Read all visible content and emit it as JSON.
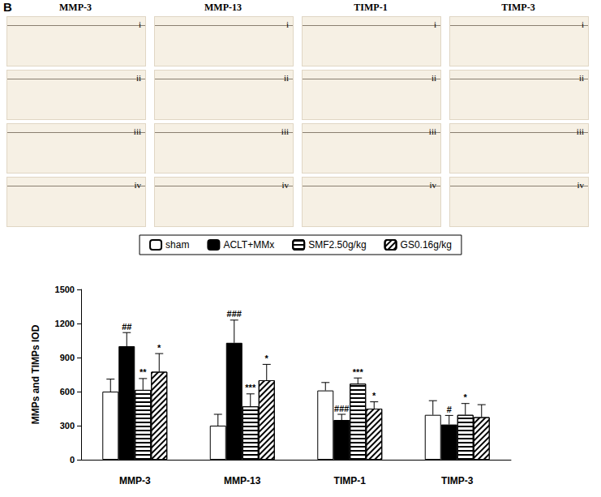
{
  "figure": {
    "label": "B",
    "panels": {
      "columns": [
        "MMP-3",
        "MMP-13",
        "TIMP-1",
        "TIMP-3"
      ],
      "rows": [
        "i",
        "ii",
        "iii",
        "iv"
      ]
    }
  },
  "chart_data": {
    "type": "bar",
    "categories": [
      "MMP-3",
      "MMP-13",
      "TIMP-1",
      "TIMP-3"
    ],
    "y_label": "MMPs and TIMPs IOD",
    "ylim": [
      0,
      1500
    ],
    "yticks": [
      0,
      300,
      600,
      900,
      1200,
      1500
    ],
    "grid": false,
    "legend": "top",
    "series": [
      {
        "name": "sham",
        "color": "#ffffff",
        "values": [
          600,
          300,
          610,
          395
        ],
        "errors": [
          110,
          100,
          70,
          125
        ]
      },
      {
        "name": "ACLT+MMx",
        "color": "#000000",
        "values": [
          1000,
          1030,
          350,
          310
        ],
        "errors": [
          120,
          200,
          50,
          80
        ],
        "significance": [
          "##",
          "###",
          "###",
          "#"
        ]
      },
      {
        "name": "SMF2.50g/kg",
        "color": "#ffffff",
        "values": [
          615,
          470,
          670,
          395
        ],
        "errors": [
          100,
          110,
          50,
          100
        ],
        "significance": [
          "**",
          "***",
          "***",
          "*"
        ]
      },
      {
        "name": "GS0.16g/kg",
        "color": "#ffffff",
        "values": [
          775,
          700,
          450,
          375
        ],
        "errors": [
          160,
          140,
          60,
          110
        ],
        "significance": [
          "*",
          "*",
          "*",
          null
        ]
      }
    ]
  }
}
